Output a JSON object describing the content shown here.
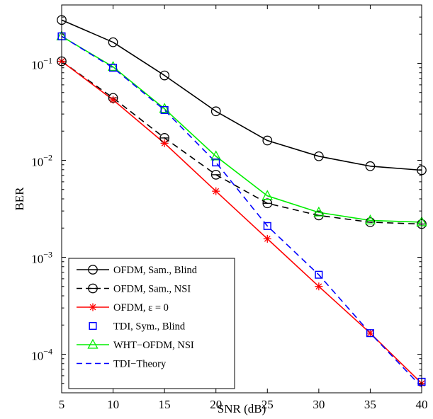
{
  "chart_data": {
    "type": "line",
    "xlabel": "SNR (dB)",
    "ylabel": "BER",
    "xlim": [
      5,
      40
    ],
    "ylim": [
      4e-05,
      0.4
    ],
    "yscale": "log",
    "grid": false,
    "legend_position": "bottom-left",
    "x_ticks": [
      "5",
      "10",
      "15",
      "20",
      "25",
      "30",
      "35",
      "40"
    ],
    "y_ticks": [
      {
        "base": "10",
        "exp": "−1"
      },
      {
        "base": "10",
        "exp": "−2"
      },
      {
        "base": "10",
        "exp": "−3"
      },
      {
        "base": "10",
        "exp": "−4"
      }
    ],
    "x": [
      5,
      10,
      15,
      20,
      25,
      30,
      35,
      40
    ],
    "series": [
      {
        "name": "OFDM, Sam., Blind",
        "color": "#000000",
        "dash": "solid",
        "marker": "circle",
        "values": [
          0.28,
          0.165,
          0.075,
          0.032,
          0.016,
          0.011,
          0.0087,
          0.0079
        ]
      },
      {
        "name": "OFDM, Sam., NSI",
        "color": "#000000",
        "dash": "dashed",
        "marker": "circle-bar",
        "values": [
          0.105,
          0.044,
          0.017,
          0.0071,
          0.0036,
          0.0027,
          0.0023,
          0.0022
        ]
      },
      {
        "name": "OFDM, ε = 0",
        "color": "#ff0000",
        "dash": "solid",
        "marker": "star",
        "values": [
          0.105,
          0.042,
          0.015,
          0.0048,
          0.00155,
          0.0005,
          0.000165,
          5e-05
        ]
      },
      {
        "name": "TDI, Sym., Blind",
        "color": "#0000ff",
        "dash": "none",
        "marker": "square",
        "values": [
          0.19,
          0.09,
          0.033,
          0.0095,
          0.0021,
          0.00066,
          0.000165,
          5.2e-05
        ]
      },
      {
        "name": "WHT−OFDM, NSI",
        "color": "#00ee00",
        "dash": "solid",
        "marker": "triangle",
        "values": [
          0.19,
          0.092,
          0.034,
          0.011,
          0.0043,
          0.0029,
          0.0024,
          0.0023
        ]
      },
      {
        "name": "TDI−Theory",
        "color": "#0000ff",
        "dash": "dashed",
        "marker": "none",
        "values": [
          0.19,
          0.09,
          0.033,
          0.0095,
          0.0021,
          0.00066,
          0.000165,
          4.6e-05
        ]
      }
    ]
  }
}
